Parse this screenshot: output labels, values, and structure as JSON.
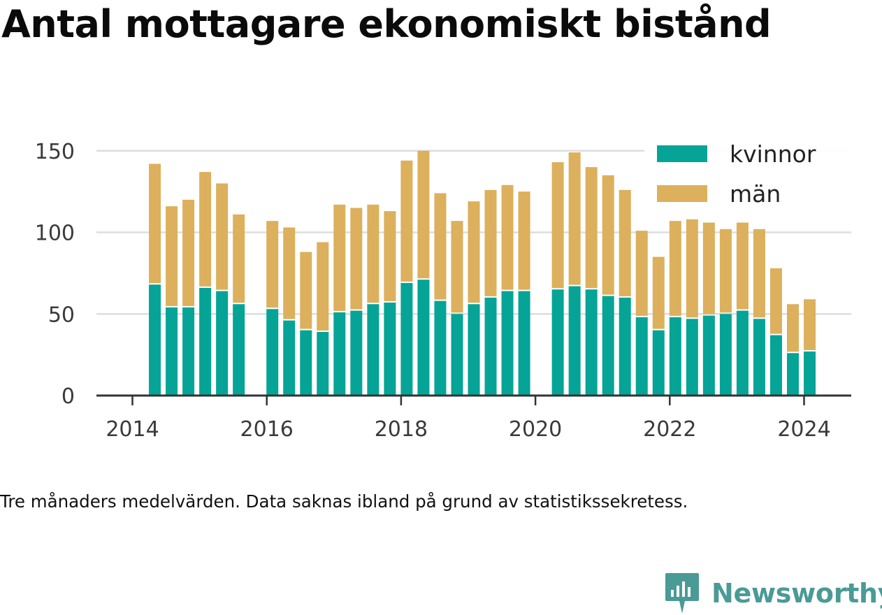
{
  "title": "Antal mottagare ekonomiskt bistånd",
  "caption": "Tre månaders medelvärden. Data saknas ibland på grund av statistikssekretess.",
  "brand": {
    "name": "Newsworthy",
    "color": "#4a9a96"
  },
  "colors": {
    "kvinnor": "#05a497",
    "man": "#dcb05c",
    "grid": "#dddddd",
    "axis": "#333333",
    "text": "#3a3a3a"
  },
  "chart_data": {
    "type": "bar",
    "stacked": true,
    "x_ticks": [
      "2014",
      "2016",
      "2018",
      "2020",
      "2022",
      "2024"
    ],
    "y_ticks": [
      "0",
      "50",
      "100",
      "150"
    ],
    "ylim": [
      0,
      150
    ],
    "grid": true,
    "legend_position": "top-right",
    "x": [
      "2014-05",
      "2014-08",
      "2014-11",
      "2015-02",
      "2015-05",
      "2015-08",
      "2016-02",
      "2016-05",
      "2016-08",
      "2016-11",
      "2017-02",
      "2017-05",
      "2017-08",
      "2017-11",
      "2018-02",
      "2018-05",
      "2018-08",
      "2018-11",
      "2019-02",
      "2019-05",
      "2019-08",
      "2019-11",
      "2020-05",
      "2020-08",
      "2020-11",
      "2021-02",
      "2021-05",
      "2021-08",
      "2021-11",
      "2022-02",
      "2022-05",
      "2022-08",
      "2022-11",
      "2023-02",
      "2023-05",
      "2023-08",
      "2023-11",
      "2024-02"
    ],
    "series": [
      {
        "name": "kvinnor",
        "values": [
          68,
          54,
          54,
          66,
          64,
          56,
          53,
          46,
          40,
          39,
          51,
          52,
          56,
          57,
          69,
          71,
          58,
          50,
          56,
          60,
          64,
          64,
          65,
          67,
          65,
          61,
          60,
          48,
          40,
          48,
          47,
          49,
          50,
          52,
          47,
          37,
          26,
          27
        ]
      },
      {
        "name": "män",
        "values": [
          74,
          62,
          66,
          71,
          66,
          55,
          54,
          57,
          48,
          55,
          66,
          63,
          61,
          56,
          75,
          79,
          66,
          57,
          63,
          66,
          65,
          61,
          78,
          82,
          75,
          74,
          66,
          53,
          45,
          59,
          61,
          57,
          52,
          54,
          55,
          41,
          30,
          32
        ]
      }
    ]
  }
}
